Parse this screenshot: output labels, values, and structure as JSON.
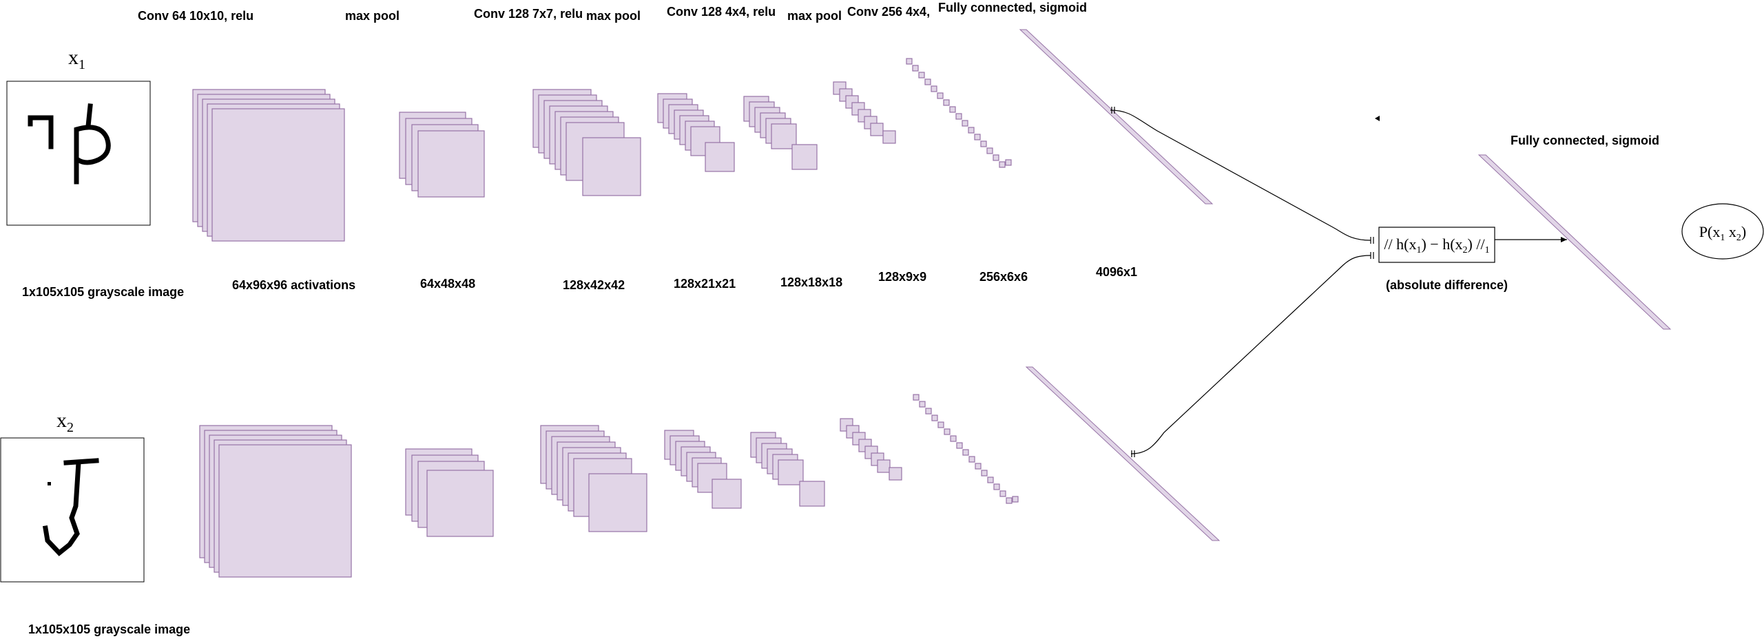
{
  "layer_headers": {
    "conv1": "Conv 64 10x10, relu",
    "pool1": "max pool",
    "conv2": "Conv 128 7x7, relu",
    "pool2": "max pool",
    "conv3": "Conv 128 4x4, relu",
    "pool3": "max pool",
    "conv4": "Conv 256 4x4,",
    "fc1": "Fully connected, sigmoid"
  },
  "inputs": {
    "x1": {
      "name": "x",
      "sub": "1",
      "caption": "1x105x105 grayscale image"
    },
    "x2": {
      "name": "x",
      "sub": "2",
      "caption": "1x105x105 grayscale image"
    }
  },
  "dimensions": {
    "d1": "64x96x96 activations",
    "d2": "64x48x48",
    "d3": "128x42x42",
    "d4": "128x21x21",
    "d5": "128x18x18",
    "d6": "128x9x9",
    "d7": "256x6x6",
    "d8": "4096x1"
  },
  "distance": {
    "formula": {
      "p1": "// h(x",
      "s1": "1",
      "p2": ") − h(x",
      "s2": "2",
      "p3": ") //",
      "s3": "1"
    },
    "caption": "(absolute difference)"
  },
  "output_layer": {
    "label": "Fully connected, sigmoid"
  },
  "output": {
    "p1": "P(x",
    "s1": "1",
    "p2": "  x",
    "s2": "2",
    "p3": ")"
  },
  "colors": {
    "layer_fill": "#e1d5e7",
    "layer_stroke": "#9673a6",
    "line": "#000000"
  }
}
